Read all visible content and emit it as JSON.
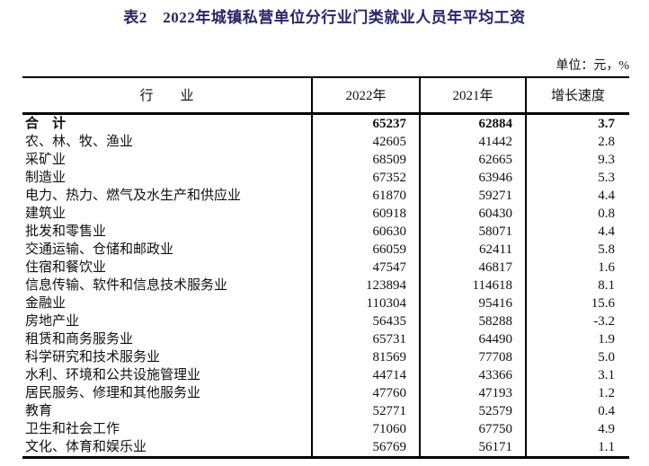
{
  "colors": {
    "title_text": "#262665",
    "body_text": "#111111",
    "table_border": "#000000",
    "background": "#ffffff"
  },
  "header": {
    "title": "表2　2022年城镇私营单位分行业门类就业人员年平均工资",
    "unit_note": "单位：元，%"
  },
  "table": {
    "columns": [
      "行　　业",
      "2022年",
      "2021年",
      "增长速度"
    ],
    "rows": [
      {
        "industry": "合　计",
        "y2022": "65237",
        "y2021": "62884",
        "growth": "3.7",
        "bold": true
      },
      {
        "industry": "农、林、牧、渔业",
        "y2022": "42605",
        "y2021": "41442",
        "growth": "2.8",
        "bold": false
      },
      {
        "industry": "采矿业",
        "y2022": "68509",
        "y2021": "62665",
        "growth": "9.3",
        "bold": false
      },
      {
        "industry": "制造业",
        "y2022": "67352",
        "y2021": "63946",
        "growth": "5.3",
        "bold": false
      },
      {
        "industry": "电力、热力、燃气及水生产和供应业",
        "y2022": "61870",
        "y2021": "59271",
        "growth": "4.4",
        "bold": false
      },
      {
        "industry": "建筑业",
        "y2022": "60918",
        "y2021": "60430",
        "growth": "0.8",
        "bold": false
      },
      {
        "industry": "批发和零售业",
        "y2022": "60630",
        "y2021": "58071",
        "growth": "4.4",
        "bold": false
      },
      {
        "industry": "交通运输、仓储和邮政业",
        "y2022": "66059",
        "y2021": "62411",
        "growth": "5.8",
        "bold": false
      },
      {
        "industry": "住宿和餐饮业",
        "y2022": "47547",
        "y2021": "46817",
        "growth": "1.6",
        "bold": false
      },
      {
        "industry": "信息传输、软件和信息技术服务业",
        "y2022": "123894",
        "y2021": "114618",
        "growth": "8.1",
        "bold": false
      },
      {
        "industry": "金融业",
        "y2022": "110304",
        "y2021": "95416",
        "growth": "15.6",
        "bold": false
      },
      {
        "industry": "房地产业",
        "y2022": "56435",
        "y2021": "58288",
        "growth": "-3.2",
        "bold": false
      },
      {
        "industry": "租赁和商务服务业",
        "y2022": "65731",
        "y2021": "64490",
        "growth": "1.9",
        "bold": false
      },
      {
        "industry": "科学研究和技术服务业",
        "y2022": "81569",
        "y2021": "77708",
        "growth": "5.0",
        "bold": false
      },
      {
        "industry": "水利、环境和公共设施管理业",
        "y2022": "44714",
        "y2021": "43366",
        "growth": "3.1",
        "bold": false
      },
      {
        "industry": "居民服务、修理和其他服务业",
        "y2022": "47760",
        "y2021": "47193",
        "growth": "1.2",
        "bold": false
      },
      {
        "industry": "教育",
        "y2022": "52771",
        "y2021": "52579",
        "growth": "0.4",
        "bold": false
      },
      {
        "industry": "卫生和社会工作",
        "y2022": "71060",
        "y2021": "67750",
        "growth": "4.9",
        "bold": false
      },
      {
        "industry": "文化、体育和娱乐业",
        "y2022": "56769",
        "y2021": "56171",
        "growth": "1.1",
        "bold": false
      }
    ]
  }
}
